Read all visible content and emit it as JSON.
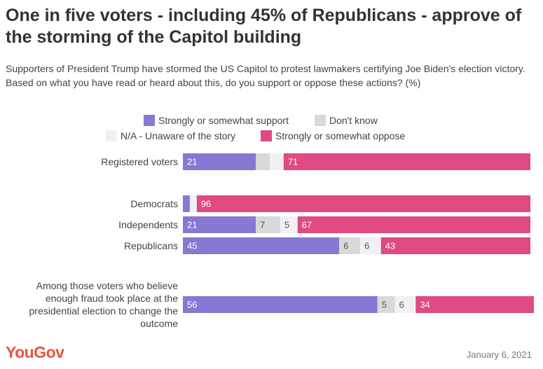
{
  "title": "One in five voters - including 45% of Republicans - approve of the storming of the Capitol building",
  "subtitle": "Supporters of President Trump have stormed the US Capitol to protest lawmakers certifying Joe Biden's election victory. Based on what you have read or heard about this, do you support or oppose these actions? (%)",
  "footer": {
    "logo": "YouGov",
    "date": "January 6, 2021"
  },
  "chart_data": {
    "type": "bar",
    "orientation": "horizontal",
    "stacked": true,
    "xlim": [
      0,
      100
    ],
    "legend_placement": "top-center",
    "categories": [
      "Registered voters",
      "Democrats",
      "Independents",
      "Republicans",
      "Among those voters who believe enough fraud took place at the presidential election to change the outcome"
    ],
    "category_lines": [
      [
        "Registered voters"
      ],
      [
        "Democrats"
      ],
      [
        "Independents"
      ],
      [
        "Republicans"
      ],
      [
        "Among those voters who believe",
        "enough fraud took place at the",
        "presidential election to change the",
        "outcome"
      ]
    ],
    "series": [
      {
        "name": "Strongly or somewhat support",
        "color": "#8878d4",
        "label_color": "#ffffff",
        "values": [
          21,
          2,
          21,
          45,
          56
        ],
        "labels": [
          "21",
          "",
          "21",
          "45",
          "56"
        ]
      },
      {
        "name": "Don't know",
        "color": "#d9d9d9",
        "label_color": "#555555",
        "values": [
          4,
          0,
          7,
          6,
          5
        ],
        "labels": [
          "",
          "",
          "7",
          "6",
          "5"
        ]
      },
      {
        "name": "N/A - Unaware of the story",
        "color": "#f1f1f5",
        "label_color": "#555555",
        "values": [
          4,
          2,
          5,
          6,
          6
        ],
        "labels": [
          "",
          "",
          "5",
          "6",
          "6"
        ]
      },
      {
        "name": "Strongly or somewhat oppose",
        "color": "#de4a81",
        "label_color": "#ffffff",
        "values": [
          71,
          96,
          67,
          43,
          34
        ],
        "labels": [
          "71",
          "96",
          "67",
          "43",
          "34"
        ]
      }
    ]
  }
}
